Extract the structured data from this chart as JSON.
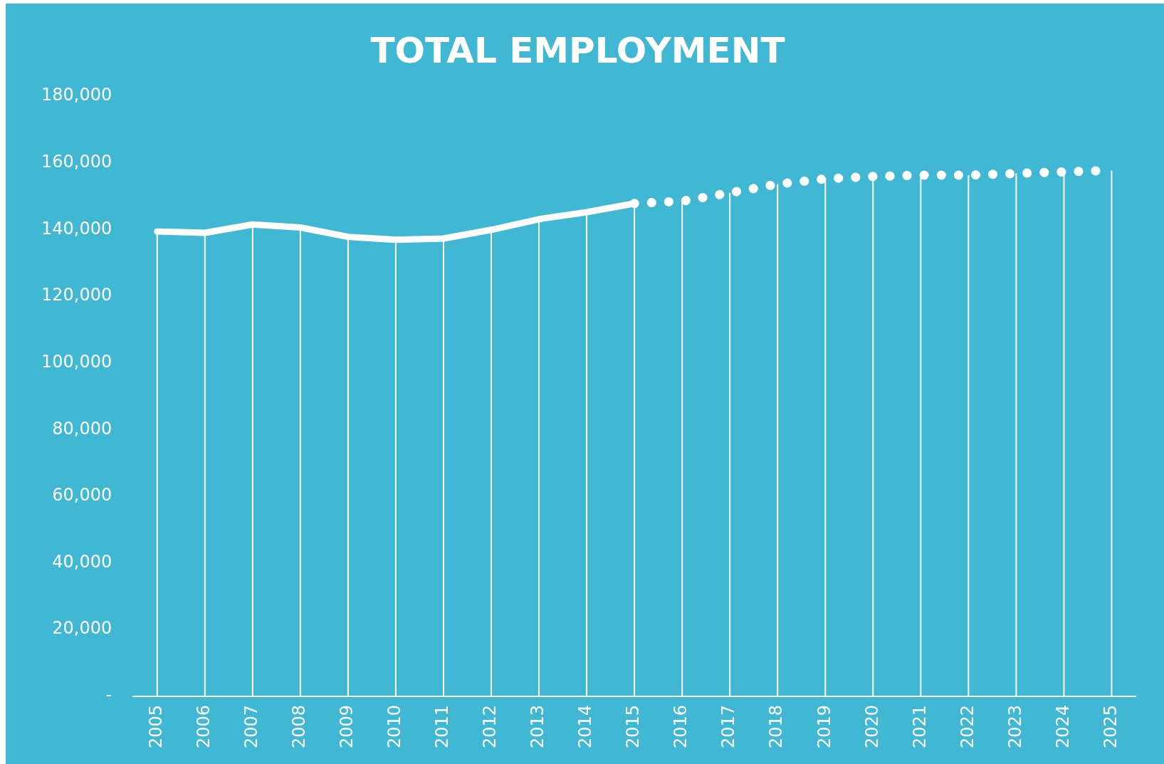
{
  "chart_data": {
    "type": "line",
    "title": "TOTAL EMPLOYMENT",
    "categories": [
      "2005",
      "2006",
      "2007",
      "2008",
      "2009",
      "2010",
      "2011",
      "2012",
      "2013",
      "2014",
      "2015",
      "2016",
      "2017",
      "2018",
      "2019",
      "2020",
      "2021",
      "2022",
      "2023",
      "2024",
      "2025"
    ],
    "series": [
      {
        "color": "#ffffff",
        "line_style": "solid",
        "values": [
          139400,
          139000,
          141500,
          140600,
          137800,
          136900,
          137300,
          139900,
          143100,
          145200,
          147800,
          null,
          null,
          null,
          null,
          null,
          null,
          null,
          null,
          null,
          null
        ]
      },
      {
        "color": "#ffffff",
        "line_style": "dotted",
        "values": [
          null,
          null,
          null,
          null,
          null,
          null,
          null,
          null,
          null,
          null,
          147800,
          148500,
          151000,
          153600,
          155200,
          155900,
          156300,
          156300,
          156800,
          157300,
          157700
        ]
      }
    ],
    "ylim": [
      0,
      180000
    ],
    "yticks": [
      {
        "value": 0,
        "label": "-"
      },
      {
        "value": 20000,
        "label": "20,000"
      },
      {
        "value": 40000,
        "label": "40,000"
      },
      {
        "value": 60000,
        "label": "60,000"
      },
      {
        "value": 80000,
        "label": "80,000"
      },
      {
        "value": 100000,
        "label": "100,000"
      },
      {
        "value": 120000,
        "label": "120,000"
      },
      {
        "value": 140000,
        "label": "140,000"
      },
      {
        "value": 160000,
        "label": "160,000"
      },
      {
        "value": 180000,
        "label": "180,000"
      }
    ],
    "grid": "x",
    "legend": false,
    "marker": "none"
  }
}
